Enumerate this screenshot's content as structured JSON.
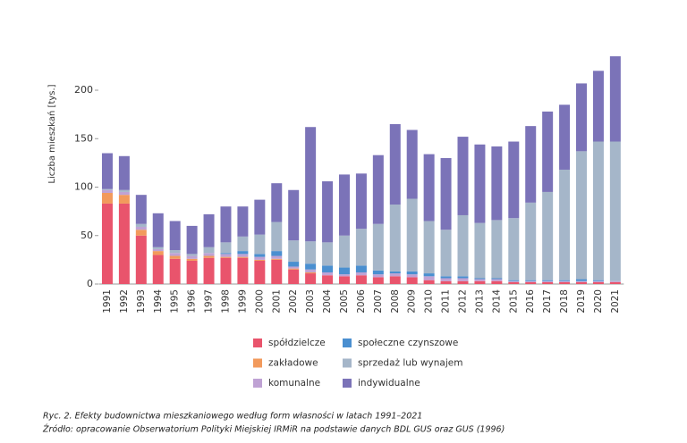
{
  "chart_data": {
    "type": "stacked_bar",
    "y_label": "Liczba mieszkań [tys.]",
    "caption": "Ryc. 2. Efekty budownictwa mieszkaniowego według form własności w latach 1991–2021",
    "source": "Źródło: opracowanie Obserwatorium Polityki Miejskiej IRMiR na podstawie danych BDL GUS oraz GUS (1996)",
    "categories": [
      "1991",
      "1992",
      "1993",
      "1994",
      "1995",
      "1996",
      "1997",
      "1998",
      "1999",
      "2000",
      "2001",
      "2002",
      "2003",
      "2004",
      "2005",
      "2006",
      "2007",
      "2008",
      "2009",
      "2010",
      "2011",
      "2012",
      "2013",
      "2014",
      "2015",
      "2016",
      "2017",
      "2018",
      "2019",
      "2020",
      "2021"
    ],
    "series": [
      {
        "name": "spółdzielcze",
        "color": "#e9546c",
        "values": [
          83,
          83,
          50,
          30,
          26,
          24,
          27,
          27,
          27,
          24,
          25,
          15,
          11,
          9,
          8,
          9,
          7,
          8,
          7,
          4,
          3,
          3,
          3,
          3,
          2,
          2,
          2,
          2,
          2,
          2,
          2
        ]
      },
      {
        "name": "zakładowe",
        "color": "#f29a5c",
        "values": [
          11,
          9,
          6,
          4,
          3,
          2,
          2,
          1,
          1,
          1,
          1,
          1,
          1,
          0,
          0,
          0,
          0,
          0,
          0,
          0,
          0,
          0,
          0,
          0,
          0,
          0,
          0,
          0,
          0,
          0,
          0
        ]
      },
      {
        "name": "komunalne",
        "color": "#bfa2d4",
        "values": [
          3,
          3,
          3,
          2,
          3,
          3,
          3,
          3,
          3,
          3,
          3,
          2,
          3,
          3,
          2,
          3,
          3,
          3,
          3,
          4,
          3,
          3,
          2,
          2,
          1,
          1,
          1,
          1,
          1,
          1,
          1
        ]
      },
      {
        "name": "społeczne czynszowe",
        "color": "#4a8fd0",
        "values": [
          0,
          0,
          0,
          0,
          0,
          0,
          0,
          1,
          3,
          3,
          5,
          5,
          6,
          7,
          7,
          7,
          4,
          2,
          3,
          3,
          2,
          2,
          1,
          1,
          1,
          1,
          1,
          1,
          2,
          1,
          0
        ]
      },
      {
        "name": "sprzedaż lub wynajem",
        "color": "#a5b6c9",
        "values": [
          1,
          2,
          3,
          2,
          3,
          2,
          6,
          11,
          15,
          20,
          30,
          22,
          23,
          24,
          33,
          38,
          48,
          69,
          75,
          54,
          48,
          63,
          57,
          60,
          64,
          80,
          91,
          114,
          132,
          143,
          144
        ]
      },
      {
        "name": "indywidualne",
        "color": "#7b73b8",
        "values": [
          37,
          35,
          30,
          35,
          30,
          29,
          34,
          37,
          31,
          36,
          40,
          52,
          118,
          63,
          63,
          57,
          71,
          83,
          71,
          69,
          74,
          81,
          81,
          76,
          79,
          79,
          83,
          67,
          70,
          73,
          88
        ]
      }
    ],
    "ylim": [
      0,
      240
    ],
    "yticks": [
      0,
      50,
      100,
      150,
      200
    ]
  }
}
